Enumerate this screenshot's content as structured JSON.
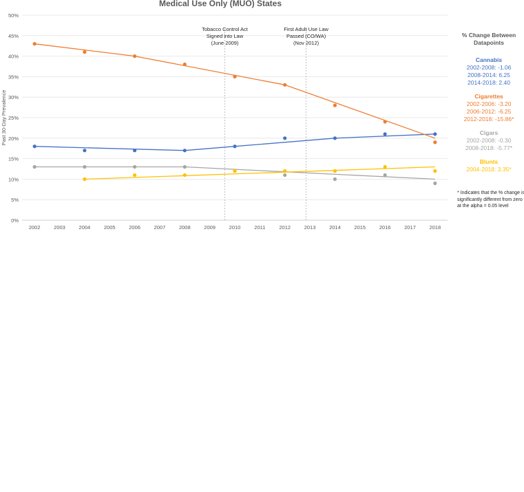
{
  "chart_data": {
    "type": "line",
    "title": "Medical Use Only (MUO) States",
    "ylabel": "Past 30-Day Prevalence",
    "xlabel": "",
    "categories": [
      "2002",
      "2003",
      "2004",
      "2005",
      "2006",
      "2007",
      "2008",
      "2009",
      "2010",
      "2011",
      "2012",
      "2013",
      "2014",
      "2015",
      "2016",
      "2017",
      "2018"
    ],
    "ylim": [
      0,
      50
    ],
    "yticks": [
      0,
      5,
      10,
      15,
      20,
      25,
      30,
      35,
      40,
      45,
      50
    ],
    "ytick_labels": [
      "0%",
      "5%",
      "10%",
      "15%",
      "20%",
      "25%",
      "30%",
      "35%",
      "40%",
      "45%",
      "50%"
    ],
    "series": [
      {
        "name": "Cannabis",
        "color": "#4472C4",
        "points": [
          [
            2002,
            18
          ],
          [
            2004,
            17
          ],
          [
            2006,
            17
          ],
          [
            2008,
            17
          ],
          [
            2010,
            18
          ],
          [
            2012,
            20
          ],
          [
            2014,
            20
          ],
          [
            2016,
            21
          ],
          [
            2018,
            21
          ]
        ],
        "trend": [
          [
            2002,
            18
          ],
          [
            2008,
            17
          ],
          [
            2010,
            18
          ],
          [
            2014,
            20
          ],
          [
            2018,
            21
          ]
        ]
      },
      {
        "name": "Cigarettes",
        "color": "#ED7D31",
        "points": [
          [
            2002,
            43
          ],
          [
            2004,
            41
          ],
          [
            2006,
            40
          ],
          [
            2008,
            38
          ],
          [
            2010,
            35
          ],
          [
            2012,
            33
          ],
          [
            2014,
            28
          ],
          [
            2016,
            24
          ],
          [
            2018,
            19
          ]
        ],
        "trend": [
          [
            2002,
            43
          ],
          [
            2006,
            40
          ],
          [
            2012,
            33
          ],
          [
            2018,
            20
          ]
        ]
      },
      {
        "name": "Cigars",
        "color": "#A5A5A5",
        "points": [
          [
            2002,
            13
          ],
          [
            2004,
            13
          ],
          [
            2006,
            13
          ],
          [
            2008,
            13
          ],
          [
            2010,
            12
          ],
          [
            2012,
            11
          ],
          [
            2014,
            10
          ],
          [
            2016,
            11
          ],
          [
            2018,
            9
          ]
        ],
        "trend": [
          [
            2002,
            13
          ],
          [
            2008,
            13
          ],
          [
            2018,
            10
          ]
        ]
      },
      {
        "name": "Blunts",
        "color": "#FFC000",
        "points": [
          [
            2004,
            10
          ],
          [
            2006,
            11
          ],
          [
            2008,
            11
          ],
          [
            2010,
            12
          ],
          [
            2012,
            12
          ],
          [
            2014,
            12
          ],
          [
            2016,
            13
          ],
          [
            2018,
            12
          ]
        ],
        "trend": [
          [
            2004,
            10
          ],
          [
            2018,
            13
          ]
        ]
      }
    ],
    "annotations": [
      {
        "x": 2009.6,
        "lines": [
          "Tobacco Control Act",
          "Signed into Law",
          "(June 2009)"
        ]
      },
      {
        "x": 2012.85,
        "lines": [
          "First Adult Use Law",
          "Passed (CO/WA)",
          "(Nov 2012)"
        ]
      }
    ]
  },
  "legend": {
    "heading": [
      "% Change Between",
      "Datapoints"
    ],
    "groups": [
      {
        "name": "Cannabis",
        "color": "#4472C4",
        "lines": [
          "2002-2008: -1.06",
          "2008-2014: 6.25",
          "2014-2018: 2.40"
        ]
      },
      {
        "name": "Cigarettes",
        "color": "#ED7D31",
        "lines": [
          "2002-2006: -3.20",
          "2006-2012: -6.25",
          "2012-2018: -15.86*"
        ]
      },
      {
        "name": "Cigars",
        "color": "#A5A5A5",
        "lines": [
          "2002-2008: -0.30",
          "2008-2018: -5.77*"
        ]
      },
      {
        "name": "Blunts",
        "color": "#FFC000",
        "lines": [
          "2004-2018: 3.35*"
        ]
      }
    ],
    "footnote": "* Indicates that the % change is significantly different from zero at the alpha = 0.05 level"
  }
}
